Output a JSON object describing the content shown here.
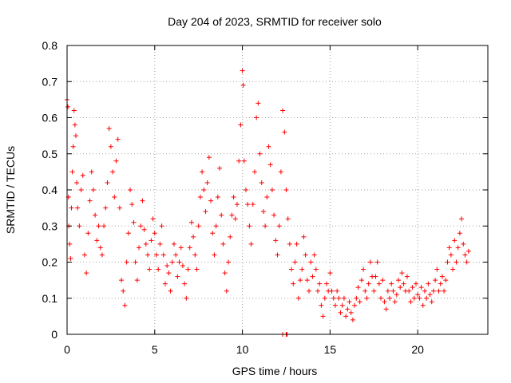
{
  "chart_data": {
    "type": "scatter",
    "title": "Day 204 of 2023, SRMTID for receiver solo",
    "xlabel": "GPS time / hours",
    "ylabel": "SRMTID / TECUs",
    "xlim": [
      0,
      24
    ],
    "ylim": [
      0,
      0.8
    ],
    "xticks": [
      0,
      5,
      10,
      15,
      20
    ],
    "yticks": [
      0,
      0.1,
      0.2,
      0.3,
      0.4,
      0.5,
      0.6,
      0.7,
      0.8
    ],
    "xtick_labels": [
      "0",
      "5",
      "10",
      "15",
      "20"
    ],
    "ytick_labels": [
      "0",
      "0.1",
      "0.2",
      "0.3",
      "0.4",
      "0.5",
      "0.6",
      "0.7",
      "0.8"
    ],
    "grid": true,
    "marker": "+",
    "series": [
      {
        "name": "SRMTID",
        "color": "#ff0000",
        "points": [
          [
            0.0,
            0.65
          ],
          [
            0.05,
            0.63
          ],
          [
            0.08,
            0.38
          ],
          [
            0.1,
            0.3
          ],
          [
            0.15,
            0.25
          ],
          [
            0.2,
            0.21
          ],
          [
            0.25,
            0.35
          ],
          [
            0.3,
            0.45
          ],
          [
            0.35,
            0.52
          ],
          [
            0.4,
            0.62
          ],
          [
            0.45,
            0.58
          ],
          [
            0.5,
            0.55
          ],
          [
            0.55,
            0.42
          ],
          [
            0.6,
            0.35
          ],
          [
            0.7,
            0.3
          ],
          [
            0.8,
            0.4
          ],
          [
            0.9,
            0.44
          ],
          [
            1.0,
            0.22
          ],
          [
            1.1,
            0.17
          ],
          [
            1.2,
            0.28
          ],
          [
            1.3,
            0.37
          ],
          [
            1.4,
            0.45
          ],
          [
            1.5,
            0.4
          ],
          [
            1.6,
            0.33
          ],
          [
            1.7,
            0.26
          ],
          [
            1.8,
            0.3
          ],
          [
            1.9,
            0.24
          ],
          [
            2.0,
            0.22
          ],
          [
            2.1,
            0.3
          ],
          [
            2.2,
            0.35
          ],
          [
            2.3,
            0.42
          ],
          [
            2.4,
            0.57
          ],
          [
            2.5,
            0.52
          ],
          [
            2.6,
            0.45
          ],
          [
            2.7,
            0.38
          ],
          [
            2.8,
            0.48
          ],
          [
            2.9,
            0.54
          ],
          [
            3.0,
            0.35
          ],
          [
            3.1,
            0.15
          ],
          [
            3.2,
            0.12
          ],
          [
            3.3,
            0.08
          ],
          [
            3.4,
            0.2
          ],
          [
            3.5,
            0.28
          ],
          [
            3.6,
            0.4
          ],
          [
            3.7,
            0.36
          ],
          [
            3.8,
            0.31
          ],
          [
            3.9,
            0.2
          ],
          [
            4.0,
            0.15
          ],
          [
            4.1,
            0.24
          ],
          [
            4.2,
            0.3
          ],
          [
            4.3,
            0.37
          ],
          [
            4.4,
            0.29
          ],
          [
            4.5,
            0.25
          ],
          [
            4.6,
            0.22
          ],
          [
            4.7,
            0.18
          ],
          [
            4.8,
            0.26
          ],
          [
            4.9,
            0.32
          ],
          [
            5.0,
            0.28
          ],
          [
            5.1,
            0.22
          ],
          [
            5.2,
            0.18
          ],
          [
            5.3,
            0.25
          ],
          [
            5.4,
            0.3
          ],
          [
            5.5,
            0.22
          ],
          [
            5.6,
            0.14
          ],
          [
            5.7,
            0.19
          ],
          [
            5.8,
            0.17
          ],
          [
            5.9,
            0.12
          ],
          [
            6.0,
            0.2
          ],
          [
            6.1,
            0.25
          ],
          [
            6.2,
            0.22
          ],
          [
            6.3,
            0.16
          ],
          [
            6.4,
            0.2
          ],
          [
            6.5,
            0.24
          ],
          [
            6.6,
            0.19
          ],
          [
            6.7,
            0.14
          ],
          [
            6.8,
            0.1
          ],
          [
            6.9,
            0.18
          ],
          [
            7.0,
            0.24
          ],
          [
            7.1,
            0.31
          ],
          [
            7.2,
            0.27
          ],
          [
            7.3,
            0.22
          ],
          [
            7.4,
            0.18
          ],
          [
            7.5,
            0.3
          ],
          [
            7.6,
            0.38
          ],
          [
            7.7,
            0.45
          ],
          [
            7.8,
            0.4
          ],
          [
            7.9,
            0.34
          ],
          [
            8.0,
            0.42
          ],
          [
            8.1,
            0.49
          ],
          [
            8.2,
            0.37
          ],
          [
            8.3,
            0.28
          ],
          [
            8.4,
            0.22
          ],
          [
            8.5,
            0.3
          ],
          [
            8.6,
            0.38
          ],
          [
            8.7,
            0.46
          ],
          [
            8.8,
            0.33
          ],
          [
            8.9,
            0.25
          ],
          [
            9.0,
            0.17
          ],
          [
            9.1,
            0.12
          ],
          [
            9.2,
            0.2
          ],
          [
            9.3,
            0.27
          ],
          [
            9.4,
            0.33
          ],
          [
            9.5,
            0.38
          ],
          [
            9.6,
            0.32
          ],
          [
            9.7,
            0.36
          ],
          [
            9.8,
            0.48
          ],
          [
            9.9,
            0.58
          ],
          [
            10.0,
            0.73
          ],
          [
            10.05,
            0.69
          ],
          [
            10.1,
            0.48
          ],
          [
            10.2,
            0.4
          ],
          [
            10.3,
            0.36
          ],
          [
            10.4,
            0.3
          ],
          [
            10.5,
            0.25
          ],
          [
            10.6,
            0.36
          ],
          [
            10.7,
            0.45
          ],
          [
            10.8,
            0.6
          ],
          [
            10.9,
            0.64
          ],
          [
            11.0,
            0.5
          ],
          [
            11.1,
            0.42
          ],
          [
            11.2,
            0.34
          ],
          [
            11.3,
            0.3
          ],
          [
            11.4,
            0.38
          ],
          [
            11.5,
            0.52
          ],
          [
            11.6,
            0.47
          ],
          [
            11.7,
            0.4
          ],
          [
            11.8,
            0.33
          ],
          [
            11.9,
            0.26
          ],
          [
            12.0,
            0.22
          ],
          [
            12.1,
            0.3
          ],
          [
            12.2,
            0.45
          ],
          [
            12.3,
            0.62
          ],
          [
            12.4,
            0.56
          ],
          [
            12.5,
            0.4
          ],
          [
            12.6,
            0.32
          ],
          [
            12.7,
            0.25
          ],
          [
            12.8,
            0.18
          ],
          [
            12.9,
            0.14
          ],
          [
            13.0,
            0.2
          ],
          [
            13.1,
            0.25
          ],
          [
            13.2,
            0.1
          ],
          [
            13.3,
            0.15
          ],
          [
            13.4,
            0.18
          ],
          [
            13.5,
            0.27
          ],
          [
            13.6,
            0.22
          ],
          [
            13.7,
            0.15
          ],
          [
            13.8,
            0.12
          ],
          [
            13.9,
            0.2
          ],
          [
            14.0,
            0.16
          ],
          [
            14.1,
            0.22
          ],
          [
            14.2,
            0.18
          ],
          [
            14.3,
            0.12
          ],
          [
            14.4,
            0.14
          ],
          [
            14.5,
            0.08
          ],
          [
            14.6,
            0.05
          ],
          [
            14.7,
            0.1
          ],
          [
            14.8,
            0.14
          ],
          [
            14.9,
            0.12
          ],
          [
            15.0,
            0.17
          ],
          [
            15.1,
            0.12
          ],
          [
            15.2,
            0.1
          ],
          [
            15.3,
            0.08
          ],
          [
            15.4,
            0.12
          ],
          [
            15.5,
            0.1
          ],
          [
            15.6,
            0.06
          ],
          [
            15.7,
            0.08
          ],
          [
            15.8,
            0.1
          ],
          [
            15.9,
            0.05
          ],
          [
            16.0,
            0.07
          ],
          [
            16.1,
            0.09
          ],
          [
            16.2,
            0.06
          ],
          [
            16.3,
            0.04
          ],
          [
            16.4,
            0.08
          ],
          [
            16.5,
            0.1
          ],
          [
            16.6,
            0.13
          ],
          [
            16.7,
            0.09
          ],
          [
            16.8,
            0.15
          ],
          [
            16.9,
            0.18
          ],
          [
            17.0,
            0.12
          ],
          [
            17.1,
            0.1
          ],
          [
            17.2,
            0.14
          ],
          [
            17.3,
            0.2
          ],
          [
            17.4,
            0.16
          ],
          [
            17.5,
            0.12
          ],
          [
            17.6,
            0.16
          ],
          [
            17.7,
            0.2
          ],
          [
            17.8,
            0.14
          ],
          [
            17.9,
            0.1
          ],
          [
            18.0,
            0.15
          ],
          [
            18.1,
            0.09
          ],
          [
            18.2,
            0.07
          ],
          [
            18.3,
            0.12
          ],
          [
            18.4,
            0.1
          ],
          [
            18.5,
            0.14
          ],
          [
            18.6,
            0.12
          ],
          [
            18.7,
            0.09
          ],
          [
            18.8,
            0.11
          ],
          [
            18.9,
            0.15
          ],
          [
            19.0,
            0.13
          ],
          [
            19.1,
            0.17
          ],
          [
            19.2,
            0.14
          ],
          [
            19.3,
            0.12
          ],
          [
            19.4,
            0.16
          ],
          [
            19.5,
            0.12
          ],
          [
            19.6,
            0.09
          ],
          [
            19.7,
            0.13
          ],
          [
            19.8,
            0.1
          ],
          [
            19.9,
            0.14
          ],
          [
            20.0,
            0.11
          ],
          [
            20.1,
            0.1
          ],
          [
            20.2,
            0.13
          ],
          [
            20.3,
            0.08
          ],
          [
            20.4,
            0.12
          ],
          [
            20.5,
            0.1
          ],
          [
            20.6,
            0.14
          ],
          [
            20.7,
            0.11
          ],
          [
            20.8,
            0.09
          ],
          [
            20.9,
            0.12
          ],
          [
            21.0,
            0.15
          ],
          [
            21.1,
            0.18
          ],
          [
            21.2,
            0.12
          ],
          [
            21.3,
            0.14
          ],
          [
            21.4,
            0.16
          ],
          [
            21.5,
            0.12
          ],
          [
            21.6,
            0.15
          ],
          [
            21.7,
            0.2
          ],
          [
            21.8,
            0.24
          ],
          [
            21.9,
            0.22
          ],
          [
            22.0,
            0.18
          ],
          [
            22.1,
            0.26
          ],
          [
            22.2,
            0.2
          ],
          [
            22.3,
            0.24
          ],
          [
            22.4,
            0.28
          ],
          [
            22.5,
            0.32
          ],
          [
            22.6,
            0.25
          ],
          [
            22.7,
            0.22
          ],
          [
            22.8,
            0.2
          ],
          [
            22.9,
            0.23
          ],
          [
            12.3,
            0.0
          ],
          [
            12.5,
            0.0
          ],
          [
            12.55,
            0.0
          ]
        ]
      }
    ]
  }
}
